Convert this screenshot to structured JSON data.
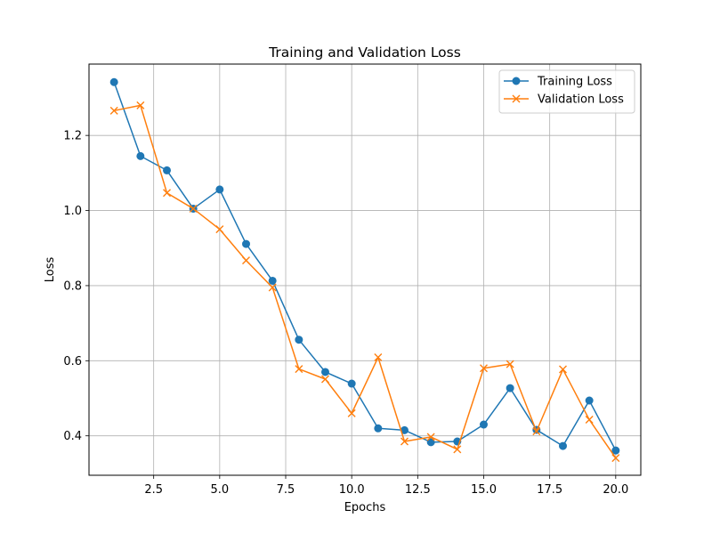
{
  "chart_data": {
    "type": "line",
    "title": "Training and Validation Loss",
    "xlabel": "Epochs",
    "ylabel": "Loss",
    "x": [
      1,
      2,
      3,
      4,
      5,
      6,
      7,
      8,
      9,
      10,
      11,
      12,
      13,
      14,
      15,
      16,
      17,
      18,
      19,
      20
    ],
    "xlim": [
      0.05,
      20.95
    ],
    "ylim": [
      0.295,
      1.39
    ],
    "xticks": [
      2.5,
      5.0,
      7.5,
      10.0,
      12.5,
      15.0,
      17.5,
      20.0
    ],
    "xtick_labels": [
      "2.5",
      "5.0",
      "7.5",
      "10.0",
      "12.5",
      "15.0",
      "17.5",
      "20.0"
    ],
    "yticks": [
      0.4,
      0.6,
      0.8,
      1.0,
      1.2
    ],
    "ytick_labels": [
      "0.4",
      "0.6",
      "0.8",
      "1.0",
      "1.2"
    ],
    "grid": true,
    "legend_position": "top-right",
    "series": [
      {
        "name": "Training Loss",
        "color": "#1f77b4",
        "marker": "circle",
        "values": [
          1.342,
          1.145,
          1.107,
          1.005,
          1.056,
          0.911,
          0.813,
          0.656,
          0.57,
          0.539,
          0.42,
          0.415,
          0.383,
          0.385,
          0.43,
          0.527,
          0.416,
          0.373,
          0.494,
          0.361
        ]
      },
      {
        "name": "Validation Loss",
        "color": "#ff7f0e",
        "marker": "x",
        "values": [
          1.266,
          1.28,
          1.047,
          1.005,
          0.95,
          0.867,
          0.795,
          0.578,
          0.551,
          0.46,
          0.609,
          0.385,
          0.397,
          0.364,
          0.58,
          0.591,
          0.412,
          0.577,
          0.443,
          0.341
        ]
      }
    ]
  }
}
